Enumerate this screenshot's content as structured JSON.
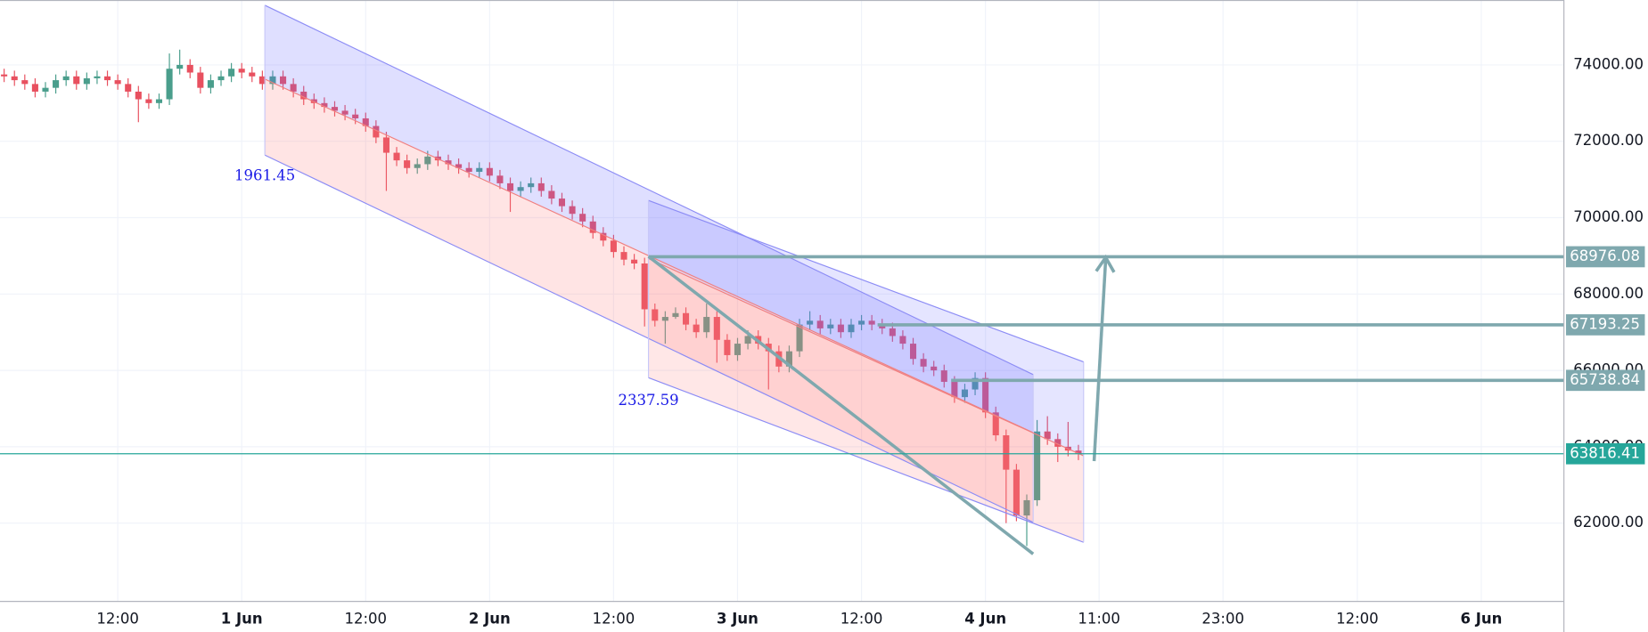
{
  "chart_data": {
    "type": "candlestick",
    "x": [
      1,
      2,
      3,
      4,
      5,
      6,
      7,
      8,
      9,
      10,
      11,
      12,
      13,
      14,
      15,
      16,
      17,
      18,
      19,
      20,
      21,
      22,
      23,
      24,
      25,
      26,
      27,
      28,
      29,
      30,
      31,
      32,
      33,
      34,
      35,
      36,
      37,
      38,
      39,
      40,
      41,
      42,
      43,
      44,
      45,
      46,
      47,
      48,
      49,
      50,
      51,
      52,
      53,
      54,
      55,
      56,
      57,
      58,
      59,
      60,
      61,
      62,
      63,
      64,
      65,
      66,
      67,
      68,
      69,
      70,
      71,
      72,
      73,
      74,
      75,
      76,
      77,
      78,
      79,
      80,
      81,
      82,
      83,
      84,
      85,
      86,
      87,
      88,
      89,
      90,
      91,
      92,
      93,
      94,
      95,
      96,
      97,
      98,
      99,
      100,
      101,
      102,
      103,
      104,
      105
    ],
    "open": [
      73750,
      73700,
      73600,
      73500,
      73300,
      73400,
      73600,
      73700,
      73500,
      73650,
      73700,
      73600,
      73500,
      73300,
      73100,
      73000,
      73100,
      73900,
      74000,
      73800,
      73400,
      73600,
      73700,
      73900,
      73800,
      73700,
      73500,
      73700,
      73500,
      73300,
      73100,
      73000,
      72900,
      72800,
      72700,
      72600,
      72400,
      72100,
      71700,
      71500,
      71300,
      71400,
      71600,
      71500,
      71400,
      71300,
      71200,
      71300,
      71100,
      70900,
      70700,
      70800,
      70900,
      70700,
      70500,
      70300,
      70100,
      69900,
      69600,
      69400,
      69100,
      68900,
      68800,
      67600,
      67300,
      67400,
      67500,
      67200,
      67000,
      67400,
      66800,
      66400,
      66700,
      66900,
      66700,
      66500,
      66100,
      66500,
      67200,
      67300,
      67100,
      67200,
      67000,
      67200,
      67300,
      67200,
      67100,
      66900,
      66700,
      66300,
      66100,
      66000,
      65700,
      65300,
      65500,
      65800,
      64900,
      64300,
      63400,
      62200,
      62600,
      64400,
      64200,
      64000,
      63900
    ],
    "high": [
      73900,
      73850,
      73750,
      73650,
      73550,
      73750,
      73850,
      73850,
      73800,
      73850,
      73850,
      73750,
      73650,
      73450,
      73250,
      73250,
      74300,
      74400,
      74150,
      73950,
      73750,
      73850,
      74050,
      74050,
      73950,
      73850,
      73850,
      73850,
      73650,
      73450,
      73250,
      73150,
      73050,
      72950,
      72850,
      72750,
      72550,
      72250,
      71850,
      71650,
      71550,
      71750,
      71750,
      71650,
      71550,
      71450,
      71450,
      71450,
      71250,
      71050,
      70950,
      71050,
      71050,
      70850,
      70650,
      70450,
      70250,
      70050,
      69750,
      69550,
      69250,
      69050,
      68950,
      67750,
      67550,
      67650,
      67650,
      67350,
      67750,
      67550,
      66950,
      66850,
      67050,
      67050,
      66850,
      66650,
      66650,
      67350,
      67550,
      67450,
      67350,
      67350,
      67350,
      67450,
      67450,
      67350,
      67250,
      67050,
      66850,
      66450,
      66250,
      66150,
      65850,
      65650,
      65950,
      65950,
      65050,
      64450,
      63550,
      62750,
      64700,
      64800,
      64350,
      64650,
      64050
    ],
    "low": [
      73550,
      73450,
      73350,
      73150,
      73150,
      73250,
      73450,
      73350,
      73350,
      73500,
      73450,
      73350,
      73150,
      72500,
      72850,
      72850,
      72950,
      73750,
      73650,
      73250,
      73250,
      73450,
      73550,
      73650,
      73550,
      73350,
      73350,
      73350,
      73150,
      72950,
      72850,
      72750,
      72650,
      72550,
      72450,
      72250,
      71950,
      70700,
      71350,
      71150,
      71150,
      71250,
      71350,
      71250,
      71150,
      71050,
      71050,
      70950,
      70750,
      70150,
      70550,
      70650,
      70550,
      70350,
      70150,
      69950,
      69750,
      69450,
      69250,
      68950,
      68750,
      68650,
      67150,
      67150,
      66700,
      67350,
      67050,
      66850,
      66850,
      66200,
      66250,
      66250,
      66550,
      66550,
      65500,
      65950,
      65950,
      66350,
      67050,
      66950,
      66950,
      66850,
      66850,
      67050,
      67050,
      66950,
      66750,
      66550,
      66150,
      65950,
      65850,
      65550,
      65150,
      65150,
      65350,
      64750,
      64150,
      62000,
      62050,
      61400,
      62450,
      64050,
      63600,
      63750,
      63650
    ],
    "close": [
      73700,
      73600,
      73500,
      73300,
      73400,
      73600,
      73700,
      73500,
      73650,
      73700,
      73600,
      73500,
      73300,
      73100,
      73000,
      73100,
      73900,
      74000,
      73800,
      73400,
      73600,
      73700,
      73900,
      73800,
      73700,
      73500,
      73700,
      73500,
      73300,
      73100,
      73000,
      72900,
      72800,
      72700,
      72600,
      72400,
      72100,
      71700,
      71500,
      71300,
      71400,
      71600,
      71500,
      71400,
      71300,
      71200,
      71300,
      71100,
      70900,
      70700,
      70800,
      70900,
      70700,
      70500,
      70300,
      70100,
      69900,
      69600,
      69400,
      69100,
      68900,
      68800,
      67600,
      67300,
      67400,
      67500,
      67200,
      67000,
      67400,
      66800,
      66400,
      66700,
      66900,
      66700,
      66500,
      66100,
      66500,
      67200,
      67300,
      67100,
      67200,
      67000,
      67200,
      67300,
      67200,
      67100,
      66900,
      66700,
      66300,
      66100,
      66000,
      65700,
      65300,
      65500,
      65800,
      64900,
      64300,
      63400,
      62200,
      62600,
      64400,
      64200,
      64000,
      63900,
      63816.41
    ],
    "up_color": "#4a9e8c",
    "down_color": "#e8505f",
    "xlim": [
      0.6,
      152
    ],
    "xticks": [
      {
        "value": 12,
        "label": "12:00"
      },
      {
        "value": 24,
        "label": "1 Jun"
      },
      {
        "value": 36,
        "label": "12:00"
      },
      {
        "value": 48,
        "label": "2 Jun"
      },
      {
        "value": 60,
        "label": "12:00"
      },
      {
        "value": 72,
        "label": "3 Jun"
      },
      {
        "value": 84,
        "label": "12:00"
      },
      {
        "value": 96,
        "label": "4 Jun"
      },
      {
        "value": 107,
        "label": "11:00"
      },
      {
        "value": 119,
        "label": "23:00"
      },
      {
        "value": 132,
        "label": "12:00"
      },
      {
        "value": 144,
        "label": "6 Jun"
      }
    ],
    "ylim": [
      59950,
      75700
    ],
    "yticks": [
      {
        "value": 62000,
        "label": "62000.00"
      },
      {
        "value": 64000,
        "label": "64000.00"
      },
      {
        "value": 66000,
        "label": "66000.00"
      },
      {
        "value": 68000,
        "label": "68000.00"
      },
      {
        "value": 70000,
        "label": "70000.00"
      },
      {
        "value": 72000,
        "label": "72000.00"
      },
      {
        "value": 74000,
        "label": "74000.00"
      }
    ],
    "grid": true,
    "price_lines": [
      68976.08,
      67193.25,
      65738.84
    ],
    "price_line_color": "#7fa8ae",
    "current_price": 63816.41,
    "current_price_color": "#26a69a",
    "channel_labels": [
      1961.45,
      2337.59
    ]
  }
}
